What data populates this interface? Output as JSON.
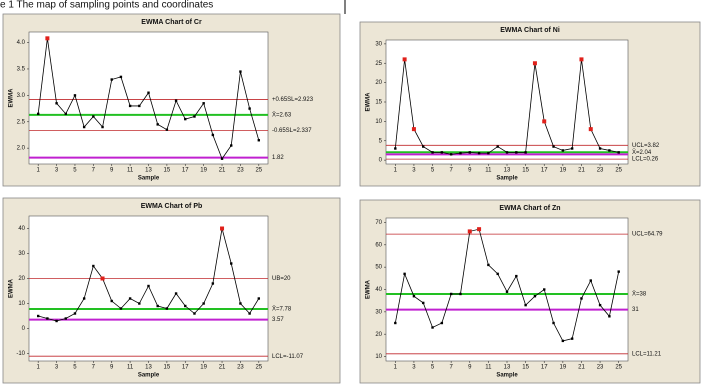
{
  "caption": "e 1 The map of sampling points and coordinates",
  "chart_data": [
    {
      "type": "line",
      "title": "EWMA Chart of Cr",
      "xlabel": "Sample",
      "ylabel": "EWMA",
      "x": [
        1,
        2,
        3,
        4,
        5,
        6,
        7,
        8,
        9,
        10,
        11,
        12,
        13,
        14,
        15,
        16,
        17,
        18,
        19,
        20,
        21,
        22,
        23,
        24,
        25
      ],
      "values": [
        2.65,
        4.08,
        2.85,
        2.65,
        3.0,
        2.4,
        2.6,
        2.4,
        3.3,
        3.35,
        2.8,
        2.8,
        3.05,
        2.45,
        2.35,
        2.9,
        2.55,
        2.6,
        2.85,
        2.25,
        1.8,
        2.05,
        3.45,
        2.75,
        2.15
      ],
      "color": "#000000",
      "highlight_color": "#e0201a",
      "highlight": [
        1
      ],
      "xlim": [
        0,
        26
      ],
      "xticks": [
        1,
        3,
        5,
        7,
        9,
        11,
        13,
        15,
        17,
        19,
        21,
        23,
        25
      ],
      "ylim": [
        1.7,
        4.2
      ],
      "yticks": [
        {
          "value": 2,
          "label": "2.0"
        },
        2.5,
        {
          "value": 3,
          "label": "3.0"
        },
        3.5,
        {
          "value": 4,
          "label": "4.0"
        }
      ],
      "lines": [
        {
          "value": 2.923,
          "label": "+0.65SL=2.923",
          "color": "#c0282c"
        },
        {
          "value": 2.63,
          "label": "X̄=2.63",
          "color": "#22c022"
        },
        {
          "value": 2.337,
          "label": "-0.65SL=2.337",
          "color": "#c0282c"
        },
        {
          "value": 1.82,
          "label": "1.82",
          "color": "#c020d0"
        }
      ]
    },
    {
      "type": "line",
      "title": "EWMA Chart of Ni",
      "xlabel": "Sample",
      "ylabel": "EWMA",
      "x": [
        1,
        2,
        3,
        4,
        5,
        6,
        7,
        8,
        9,
        10,
        11,
        12,
        13,
        14,
        15,
        16,
        17,
        18,
        19,
        20,
        21,
        22,
        23,
        24,
        25
      ],
      "values": [
        3,
        26,
        8,
        3.5,
        2,
        2,
        1.5,
        1.8,
        2,
        1.8,
        1.8,
        3.5,
        2,
        2,
        2,
        25,
        10,
        3.5,
        2.5,
        3,
        26,
        8,
        3,
        2.5,
        2
      ],
      "color": "#000000",
      "highlight_color": "#e0201a",
      "highlight": [
        1,
        2,
        15,
        16,
        20,
        21
      ],
      "xlim": [
        0,
        26
      ],
      "xticks": [
        1,
        3,
        5,
        7,
        9,
        11,
        13,
        15,
        17,
        19,
        21,
        23,
        25
      ],
      "ylim": [
        -1,
        31
      ],
      "yticks": [
        0,
        5,
        10,
        15,
        20,
        25,
        30
      ],
      "lines": [
        {
          "value": 3.82,
          "label": "UCL=3.82",
          "color": "#c0282c"
        },
        {
          "value": 2.04,
          "label": "X̄=2.04",
          "color": "#22c022"
        },
        {
          "value": 1.5,
          "color": "#c020d0"
        },
        {
          "value": 0.26,
          "label": "LCL=0.26",
          "color": "#c0282c"
        }
      ]
    },
    {
      "type": "line",
      "title": "EWMA Chart of Pb",
      "xlabel": "Sample",
      "ylabel": "EWMA",
      "x": [
        1,
        2,
        3,
        4,
        5,
        6,
        7,
        8,
        9,
        10,
        11,
        12,
        13,
        14,
        15,
        16,
        17,
        18,
        19,
        20,
        21,
        22,
        23,
        24,
        25
      ],
      "values": [
        5,
        4,
        3,
        4,
        6,
        12,
        25,
        20,
        11,
        8,
        12,
        10,
        17,
        9,
        8,
        14,
        9,
        6,
        10,
        18,
        40,
        26,
        10,
        6,
        12
      ],
      "color": "#000000",
      "highlight_color": "#e0201a",
      "highlight": [
        7,
        20
      ],
      "xlim": [
        0,
        26
      ],
      "xticks": [
        1,
        3,
        5,
        7,
        9,
        11,
        13,
        15,
        17,
        19,
        21,
        23,
        25
      ],
      "ylim": [
        -13,
        45
      ],
      "yticks": [
        -10,
        0,
        10,
        20,
        30,
        40
      ],
      "lines": [
        {
          "value": 20,
          "label": "UB=20",
          "color": "#c0282c"
        },
        {
          "value": 7.78,
          "label": "X̄=7.78",
          "color": "#22c022"
        },
        {
          "value": 3.57,
          "label": "3.57",
          "color": "#c020d0"
        },
        {
          "value": -11.07,
          "label": "LCL=-11.07",
          "color": "#c0282c"
        }
      ]
    },
    {
      "type": "line",
      "title": "EWMA Chart of Zn",
      "xlabel": "Sample",
      "ylabel": "EWMA",
      "x": [
        1,
        2,
        3,
        4,
        5,
        6,
        7,
        8,
        9,
        10,
        11,
        12,
        13,
        14,
        15,
        16,
        17,
        18,
        19,
        20,
        21,
        22,
        23,
        24,
        25
      ],
      "values": [
        25,
        47,
        37,
        34,
        23,
        25,
        38,
        38,
        66,
        67,
        51,
        47,
        39,
        46,
        33,
        37,
        40,
        25,
        17,
        18,
        36,
        44,
        33,
        28,
        48
      ],
      "color": "#000000",
      "highlight_color": "#e0201a",
      "highlight": [
        8,
        9
      ],
      "xlim": [
        0,
        26
      ],
      "xticks": [
        1,
        3,
        5,
        7,
        9,
        11,
        13,
        15,
        17,
        19,
        21,
        23,
        25
      ],
      "ylim": [
        8,
        72
      ],
      "yticks": [
        10,
        20,
        30,
        40,
        50,
        60,
        70
      ],
      "lines": [
        {
          "value": 64.79,
          "label": "UCL=64.79",
          "color": "#c0282c"
        },
        {
          "value": 38,
          "label": "X̄=38",
          "color": "#22c022"
        },
        {
          "value": 31,
          "label": "31",
          "color": "#c020d0"
        },
        {
          "value": 11.21,
          "label": "LCL=11.21",
          "color": "#c0282c"
        }
      ]
    }
  ]
}
